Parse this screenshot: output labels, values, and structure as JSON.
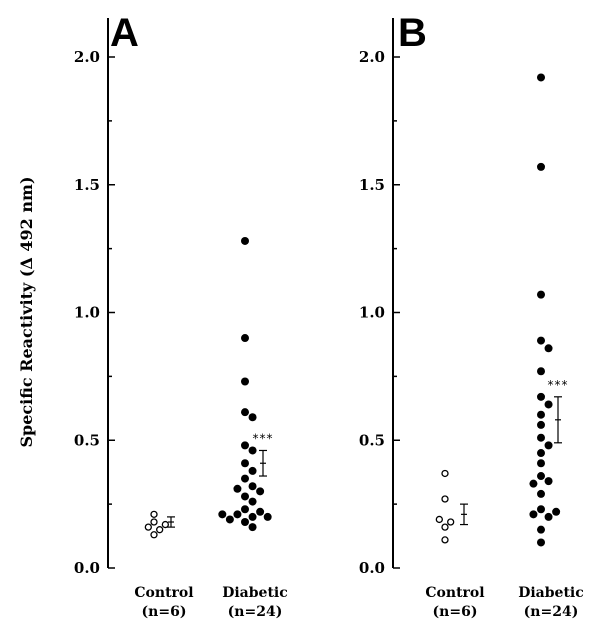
{
  "chart_data": [
    {
      "type": "scatter",
      "panel_label": "A",
      "ylabel": "Specific Reactivity (Δ 492 nm)",
      "ylim": [
        0.0,
        2.0
      ],
      "yticks": [
        "0.0",
        "0.5",
        "1.0",
        "1.5",
        "2.0"
      ],
      "categories": [
        {
          "line1": "Control",
          "line2": "(n=6)"
        },
        {
          "line1": "Diabetic",
          "line2": "(n=24)"
        }
      ],
      "series": [
        {
          "category": "Control",
          "marker": "open",
          "values": [
            0.13,
            0.15,
            0.16,
            0.17,
            0.18,
            0.21
          ],
          "mean": 0.18,
          "sem": 0.02
        },
        {
          "category": "Diabetic",
          "marker": "filled",
          "values": [
            1.28,
            0.9,
            0.73,
            0.61,
            0.59,
            0.48,
            0.46,
            0.41,
            0.38,
            0.35,
            0.32,
            0.31,
            0.3,
            0.28,
            0.26,
            0.23,
            0.22,
            0.21,
            0.21,
            0.2,
            0.2,
            0.19,
            0.18,
            0.16
          ],
          "mean": 0.41,
          "sem": 0.05,
          "significance": "***"
        }
      ]
    },
    {
      "type": "scatter",
      "panel_label": "B",
      "ylim": [
        0.0,
        2.0
      ],
      "yticks": [
        "0.0",
        "0.5",
        "1.0",
        "1.5",
        "2.0"
      ],
      "categories": [
        {
          "line1": "Control",
          "line2": "(n=6)"
        },
        {
          "line1": "Diabetic",
          "line2": "(n=24)"
        }
      ],
      "series": [
        {
          "category": "Control",
          "marker": "open",
          "values": [
            0.11,
            0.16,
            0.18,
            0.19,
            0.27,
            0.37
          ],
          "mean": 0.21,
          "sem": 0.04
        },
        {
          "category": "Diabetic",
          "marker": "filled",
          "values": [
            1.92,
            1.57,
            1.07,
            0.89,
            0.86,
            0.77,
            0.67,
            0.64,
            0.6,
            0.56,
            0.51,
            0.48,
            0.45,
            0.41,
            0.36,
            0.34,
            0.33,
            0.29,
            0.23,
            0.22,
            0.21,
            0.2,
            0.15,
            0.1
          ],
          "mean": 0.58,
          "sem": 0.09,
          "significance": "***"
        }
      ]
    }
  ]
}
